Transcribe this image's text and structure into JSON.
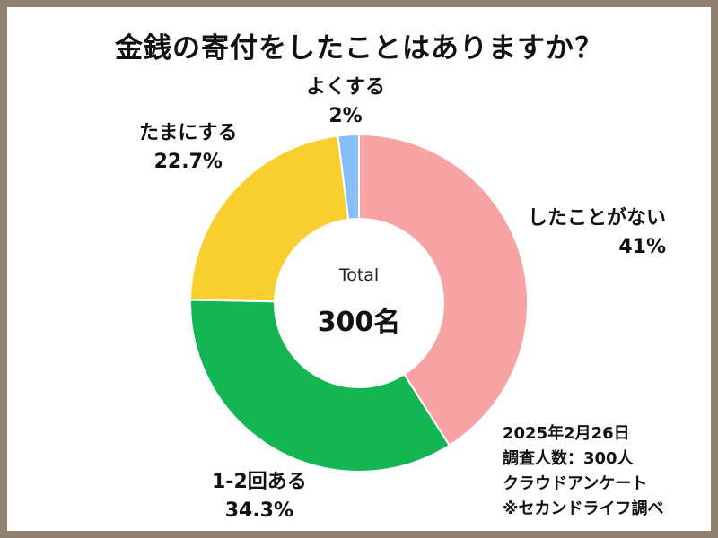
{
  "chart_data": {
    "type": "pie",
    "title": "金銭の寄付をしたことはありますか？",
    "center": {
      "label": "Total",
      "value": "300名"
    },
    "slices": [
      {
        "label": "したことがない",
        "value": 41,
        "display": "41%",
        "color": "#f7a3a3"
      },
      {
        "label": "1-2回ある",
        "value": 34.3,
        "display": "34.3%",
        "color": "#14b553"
      },
      {
        "label": "たまにする",
        "value": 22.7,
        "display": "22.7%",
        "color": "#f8cf2f"
      },
      {
        "label": "よくする",
        "value": 2,
        "display": "2%",
        "color": "#86bff7"
      }
    ],
    "legend": "none"
  },
  "notes": [
    "2025年2月26日",
    "調査人数：300人",
    "クラウドアンケート",
    "※セカンドライフ調べ"
  ]
}
